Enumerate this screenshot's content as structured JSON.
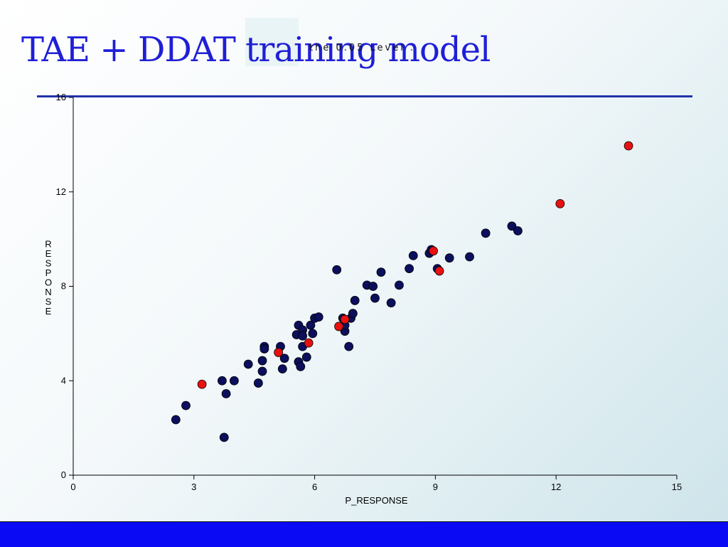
{
  "slide": {
    "title": "TAE + DDAT training model",
    "overlay_text": "the 0.05 Level ."
  },
  "colors": {
    "title": "#1f1fd6",
    "rule": "#2233aa",
    "footer": "#0a0af5",
    "series_train": "#0b0f5c",
    "series_test": "#e81010"
  },
  "chart_data": {
    "type": "scatter",
    "title": "",
    "xlabel": "P_RESPONSE",
    "ylabel": "RESPONSE",
    "xlim": [
      0,
      15
    ],
    "ylim": [
      0,
      16
    ],
    "xticks": [
      "0",
      "3",
      "6",
      "9",
      "12",
      "15"
    ],
    "yticks": [
      "0",
      "4",
      "8",
      "12",
      "16"
    ],
    "grid": false,
    "legend": "none",
    "series": [
      {
        "color": "#0b0f5c",
        "points": [
          [
            2.55,
            2.35
          ],
          [
            2.8,
            2.95
          ],
          [
            3.7,
            4.0
          ],
          [
            3.75,
            1.6
          ],
          [
            3.8,
            3.45
          ],
          [
            4.0,
            4.0
          ],
          [
            4.35,
            4.7
          ],
          [
            4.6,
            3.9
          ],
          [
            4.7,
            4.85
          ],
          [
            4.7,
            4.4
          ],
          [
            4.75,
            5.45
          ],
          [
            4.75,
            5.35
          ],
          [
            5.15,
            5.45
          ],
          [
            5.2,
            4.5
          ],
          [
            5.25,
            4.95
          ],
          [
            5.55,
            5.95
          ],
          [
            5.6,
            6.35
          ],
          [
            5.6,
            4.8
          ],
          [
            5.65,
            4.6
          ],
          [
            5.7,
            6.15
          ],
          [
            5.7,
            5.9
          ],
          [
            5.7,
            5.45
          ],
          [
            5.8,
            5.0
          ],
          [
            5.9,
            6.35
          ],
          [
            5.95,
            6.0
          ],
          [
            6.0,
            6.65
          ],
          [
            6.1,
            6.7
          ],
          [
            6.55,
            8.7
          ],
          [
            6.7,
            6.65
          ],
          [
            6.75,
            6.1
          ],
          [
            6.75,
            6.35
          ],
          [
            6.85,
            5.45
          ],
          [
            6.9,
            6.65
          ],
          [
            6.95,
            6.85
          ],
          [
            7.0,
            7.4
          ],
          [
            7.3,
            8.05
          ],
          [
            7.45,
            8.0
          ],
          [
            7.5,
            7.5
          ],
          [
            7.65,
            8.6
          ],
          [
            7.9,
            7.3
          ],
          [
            8.1,
            8.05
          ],
          [
            8.35,
            8.75
          ],
          [
            8.45,
            9.3
          ],
          [
            8.85,
            9.4
          ],
          [
            8.9,
            9.55
          ],
          [
            9.05,
            8.75
          ],
          [
            9.35,
            9.2
          ],
          [
            9.85,
            9.25
          ],
          [
            10.25,
            10.25
          ],
          [
            10.9,
            10.55
          ],
          [
            11.05,
            10.35
          ]
        ]
      },
      {
        "color": "#e81010",
        "points": [
          [
            3.2,
            3.85
          ],
          [
            5.1,
            5.2
          ],
          [
            5.85,
            5.6
          ],
          [
            6.6,
            6.3
          ],
          [
            6.75,
            6.6
          ],
          [
            8.95,
            9.5
          ],
          [
            9.1,
            8.65
          ],
          [
            12.1,
            11.5
          ],
          [
            13.8,
            13.95
          ]
        ]
      }
    ]
  }
}
